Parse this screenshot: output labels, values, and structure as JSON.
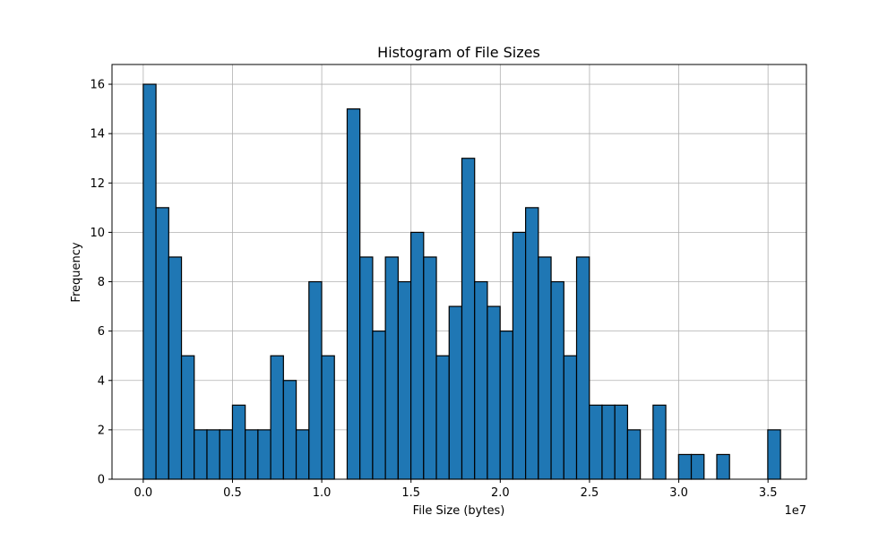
{
  "chart_data": {
    "type": "bar",
    "title": "Histogram of File Sizes",
    "xlabel": "File Size (bytes)",
    "ylabel": "Frequency",
    "x_offset_label": "1e7",
    "xlim": [
      -0.175,
      3.715
    ],
    "ylim": [
      0,
      16.8
    ],
    "grid": true,
    "bar_color": "#1f77b4",
    "edge_color": "#000000",
    "bin_start": 0.0,
    "bin_width": 0.0714,
    "values": [
      16,
      11,
      9,
      5,
      2,
      2,
      2,
      3,
      2,
      2,
      5,
      4,
      2,
      8,
      5,
      0,
      15,
      9,
      6,
      9,
      8,
      10,
      9,
      5,
      7,
      13,
      8,
      7,
      6,
      10,
      11,
      9,
      8,
      5,
      9,
      3,
      3,
      3,
      2,
      0,
      3,
      0,
      1,
      1,
      0,
      1,
      0,
      0,
      0,
      2
    ],
    "x_ticks": [
      {
        "value": 0.0,
        "label": "0.0"
      },
      {
        "value": 0.5,
        "label": "0.5"
      },
      {
        "value": 1.0,
        "label": "1.0"
      },
      {
        "value": 1.5,
        "label": "1.5"
      },
      {
        "value": 2.0,
        "label": "2.0"
      },
      {
        "value": 2.5,
        "label": "2.5"
      },
      {
        "value": 3.0,
        "label": "3.0"
      },
      {
        "value": 3.5,
        "label": "3.5"
      }
    ],
    "y_ticks": [
      {
        "value": 0,
        "label": "0"
      },
      {
        "value": 2,
        "label": "2"
      },
      {
        "value": 4,
        "label": "4"
      },
      {
        "value": 6,
        "label": "6"
      },
      {
        "value": 8,
        "label": "8"
      },
      {
        "value": 10,
        "label": "10"
      },
      {
        "value": 12,
        "label": "12"
      },
      {
        "value": 14,
        "label": "14"
      },
      {
        "value": 16,
        "label": "16"
      }
    ]
  }
}
